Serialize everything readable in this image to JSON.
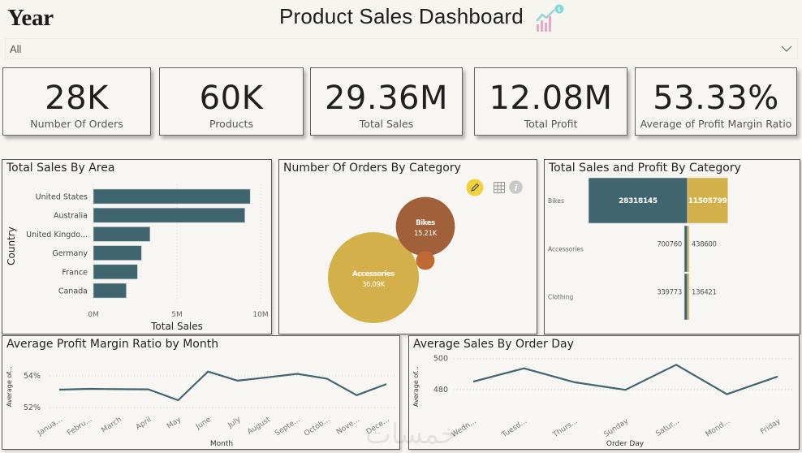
{
  "header": {
    "slicer_title": "Year",
    "dashboard_title": "Product Sales Dashboard",
    "title_icon": "growth-chart-icon"
  },
  "year_slicer": {
    "selected": "All",
    "icon": "chevron-down-icon"
  },
  "kpis": [
    {
      "value": "28K",
      "label": "Number Of Orders"
    },
    {
      "value": "60K",
      "label": "Products"
    },
    {
      "value": "29.36M",
      "label": "Total Sales"
    },
    {
      "value": "12.08M",
      "label": "Total Profit"
    },
    {
      "value": "53.33%",
      "label": "Average of Profit Margin Ratio"
    }
  ],
  "colors": {
    "primary": "#41656f",
    "gold": "#d4b04b",
    "brown": "#a0613a",
    "orange_dot": "#bf6a32",
    "background": "#f6f5f0"
  },
  "visual_header_icons": [
    "pencil-icon",
    "grid-table-icon",
    "info-icon"
  ],
  "watermark": "خمسات",
  "chart_data": [
    {
      "id": "sales_by_area",
      "type": "bar",
      "orientation": "horizontal",
      "title": "Total Sales By Area",
      "xlabel": "Total Sales",
      "ylabel": "Country",
      "categories": [
        "United States",
        "Australia",
        "United Kingdo...",
        "Germany",
        "France",
        "Canada"
      ],
      "values": [
        9.38,
        9.06,
        3.39,
        2.88,
        2.64,
        1.97
      ],
      "value_unit": "M",
      "xlim": [
        0,
        10
      ],
      "xticks": [
        "0M",
        "5M",
        "10M"
      ],
      "xtick_values": [
        0,
        5,
        10
      ],
      "grid": true
    },
    {
      "id": "orders_by_category",
      "type": "scatter",
      "subtype": "bubble",
      "title": "Number Of Orders By Category",
      "points": [
        {
          "label": "Accessories",
          "value_label": "36.09K",
          "value": 36090,
          "color": "#d4b04b"
        },
        {
          "label": "Bikes",
          "value_label": "15.21K",
          "value": 15210,
          "color": "#a0613a"
        },
        {
          "label": "Clothing",
          "value_label": "",
          "value": 1500,
          "color": "#bf6a32"
        }
      ]
    },
    {
      "id": "sales_profit_by_category",
      "type": "bar",
      "subtype": "funnel-diverging",
      "title": "Total Sales and Profit By Category",
      "categories": [
        "Bikes",
        "Accessories",
        "Clothing"
      ],
      "series": [
        {
          "name": "Total Sales",
          "values": [
            28318145,
            700760,
            339773
          ],
          "color": "#41656f"
        },
        {
          "name": "Total Profit",
          "values": [
            11505799,
            438600,
            136421
          ],
          "color": "#d4b04b"
        }
      ]
    },
    {
      "id": "profit_margin_by_month",
      "type": "line",
      "title": "Average Profit Margin Ratio by Month",
      "xlabel": "Month",
      "ylabel": "Average of...",
      "categories": [
        "Janua...",
        "Febru...",
        "March",
        "April",
        "May",
        "June",
        "July",
        "August",
        "Septe...",
        "Octob...",
        "Nove...",
        "Dece..."
      ],
      "values": [
        53.13,
        53.18,
        53.16,
        53.15,
        52.47,
        54.26,
        53.69,
        53.9,
        54.12,
        53.82,
        52.78,
        53.48
      ],
      "yticks": [
        "52%",
        "54%"
      ],
      "ytick_values": [
        52,
        54
      ],
      "ylim": [
        51.3,
        54.6
      ],
      "grid": true
    },
    {
      "id": "sales_by_order_day",
      "type": "line",
      "title": "Average Sales By Order Day",
      "xlabel": "Order Day",
      "ylabel": "Average of...",
      "categories": [
        "Wedn...",
        "Tuesd...",
        "Thurs...",
        "Sunday",
        "Satur...",
        "Mond...",
        "Friday"
      ],
      "values": [
        485.1,
        493.7,
        484.7,
        479.8,
        496.0,
        477.0,
        488.4
      ],
      "yticks": [
        "480",
        "500"
      ],
      "ytick_values": [
        480,
        500
      ],
      "ylim": [
        471,
        503
      ],
      "grid": true
    }
  ]
}
